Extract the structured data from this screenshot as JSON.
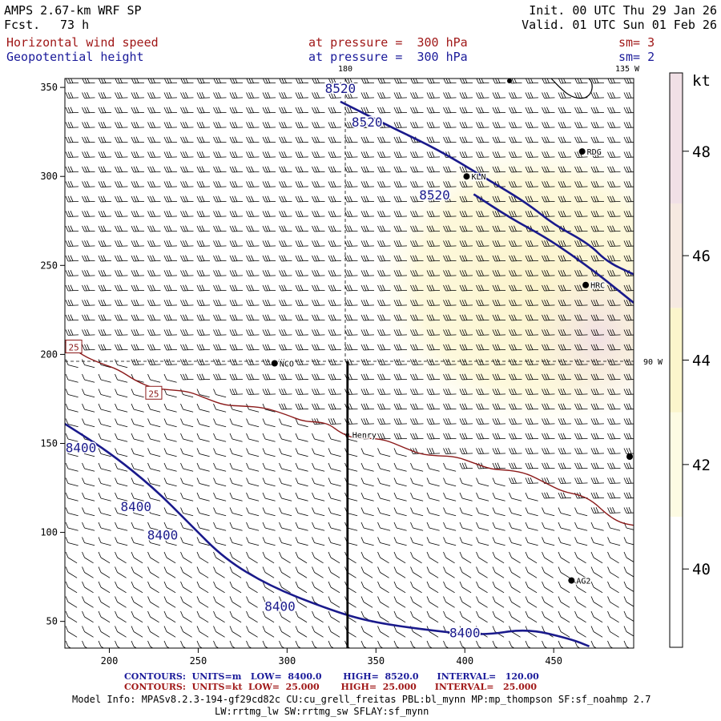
{
  "header": {
    "model": "AMPS 2.67-km WRF SP",
    "fcst_label": "Fcst.",
    "fcst_value": "73 h",
    "init": "Init. 00 UTC Thu 29 Jan 26",
    "valid": "Valid. 01 UTC Sun 01 Feb 26",
    "field1": "Horizontal wind speed",
    "field1_level": "at pressure =  300 hPa",
    "field1_sm": "sm= 3",
    "field2": "Geopotential height",
    "field2_level": "at pressure =  300 hPa",
    "field2_sm": "sm= 2"
  },
  "colors": {
    "height_contour": "#1a1a8c",
    "wind_contour": "#8b1a1a",
    "barb": "#000000",
    "shade_42": "#fdfad8",
    "shade_44": "#fbf6cf",
    "shade_46": "#f6ebe0",
    "shade_48": "#f1e0e6"
  },
  "chart_data": {
    "type": "contour_map",
    "xlim": [
      175,
      495
    ],
    "ylim": [
      35,
      355
    ],
    "xticks": [
      200,
      250,
      300,
      350,
      400,
      450
    ],
    "yticks": [
      50,
      100,
      150,
      200,
      250,
      300,
      350
    ],
    "meridian_labels": [
      "180",
      "135 W",
      "90 W"
    ],
    "stations": [
      {
        "name": "RDG",
        "x": 466,
        "y": 314
      },
      {
        "name": "KLN",
        "x": 401,
        "y": 300
      },
      {
        "name": "HRC",
        "x": 468,
        "y": 239
      },
      {
        "name": "NCO",
        "x": 293,
        "y": 195
      },
      {
        "name": "Henry",
        "x": 334,
        "y": 155
      },
      {
        "name": "AG2",
        "x": 460,
        "y": 73
      }
    ],
    "height_contours": [
      {
        "level": 8520,
        "labels": [
          "8520",
          "8520",
          "8520"
        ],
        "points": [
          [
            330,
            342
          ],
          [
            360,
            327
          ],
          [
            385,
            315
          ],
          [
            410,
            300
          ],
          [
            435,
            285
          ],
          [
            450,
            273
          ],
          [
            470,
            262
          ],
          [
            480,
            252
          ],
          [
            495,
            245
          ]
        ]
      },
      {
        "level": 8520,
        "labels": [],
        "points": [
          [
            405,
            290
          ],
          [
            425,
            277
          ],
          [
            445,
            266
          ],
          [
            460,
            256
          ],
          [
            475,
            245
          ],
          [
            485,
            237
          ],
          [
            495,
            229
          ]
        ]
      },
      {
        "level": 8400,
        "labels": [
          "8400",
          "8400",
          "8400",
          "8400",
          "8400"
        ],
        "points": [
          [
            175,
            161
          ],
          [
            200,
            145
          ],
          [
            225,
            125
          ],
          [
            245,
            105
          ],
          [
            265,
            85
          ],
          [
            290,
            70
          ],
          [
            320,
            58
          ],
          [
            345,
            50
          ],
          [
            380,
            45
          ],
          [
            410,
            42
          ],
          [
            435,
            46
          ],
          [
            460,
            40
          ],
          [
            470,
            36
          ]
        ]
      }
    ],
    "wind_contours": [
      {
        "level": 25,
        "labels": [
          "25",
          "25"
        ],
        "points": [
          [
            175,
            207
          ],
          [
            195,
            195
          ],
          [
            215,
            185
          ],
          [
            235,
            180
          ],
          [
            255,
            175
          ],
          [
            275,
            171
          ],
          [
            300,
            166
          ],
          [
            318,
            162
          ],
          [
            330,
            156
          ],
          [
            345,
            153
          ],
          [
            365,
            148
          ],
          [
            385,
            143
          ],
          [
            405,
            139
          ],
          [
            425,
            135
          ],
          [
            445,
            128
          ],
          [
            465,
            121
          ],
          [
            480,
            110
          ],
          [
            495,
            104
          ]
        ]
      }
    ],
    "shading": [
      {
        "kt": 42,
        "center": [
          440,
          240
        ],
        "radius": [
          95,
          85
        ]
      },
      {
        "kt": 46,
        "center": [
          475,
          210
        ],
        "radius": [
          40,
          45
        ]
      }
    ],
    "vertical_section": {
      "x": 334,
      "y_from": 35,
      "y_to": 196
    },
    "colorbar": {
      "unit": "kt",
      "labels": [
        "40",
        "42",
        "44",
        "46",
        "48"
      ],
      "min": 38.5,
      "max": 49.5
    },
    "contour_info": {
      "line1": "CONTOURS:  UNITS=m   LOW=  8400.0       HIGH=  8520.0      INTERVAL=   120.00",
      "line2": "CONTOURS:  UNITS=kt  LOW=  25.000       HIGH=  25.000      INTERVAL=   25.000"
    },
    "model_info": {
      "line1": "Model Info: MPASv8.2.3-194-gf29cd82c CU:cu_grell_freitas PBL:bl_mynn MP:mp_thompson SF:sf_noahmp 2.7",
      "line2": "LW:rrtmg_lw SW:rrtmg_sw SFLAY:sf_mynn"
    }
  }
}
